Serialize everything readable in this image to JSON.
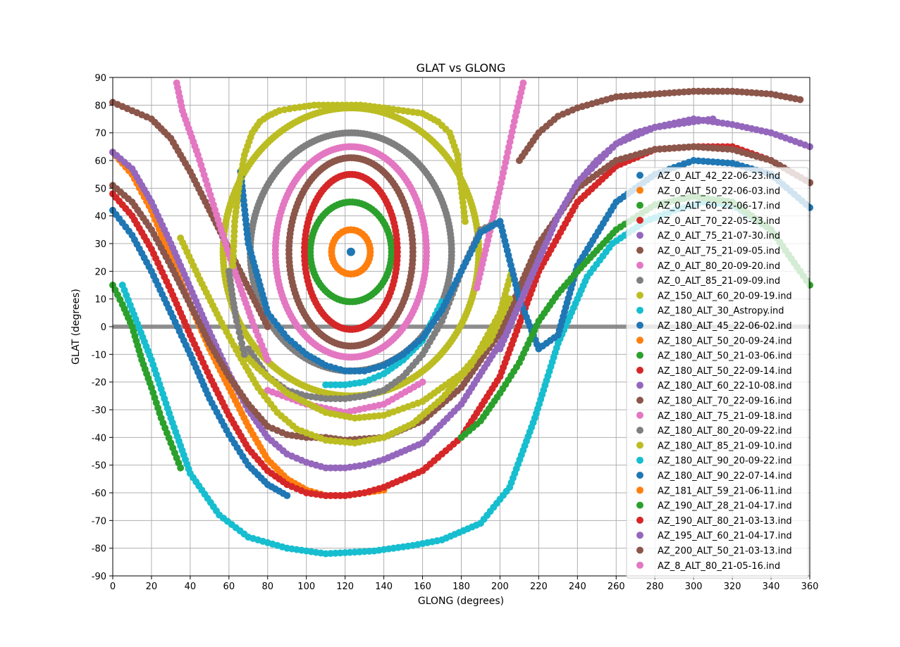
{
  "chart_data": {
    "type": "scatter",
    "title": "GLAT vs GLONG",
    "xlabel": "GLONG (degrees)",
    "ylabel": "GLAT (degrees)",
    "xlim": [
      0,
      360
    ],
    "ylim": [
      -90,
      90
    ],
    "xticks": [
      0,
      20,
      40,
      60,
      80,
      100,
      120,
      140,
      160,
      180,
      200,
      220,
      240,
      260,
      280,
      300,
      320,
      340,
      360
    ],
    "yticks": [
      -90,
      -80,
      -70,
      -60,
      -50,
      -40,
      -30,
      -20,
      -10,
      0,
      10,
      20,
      30,
      40,
      50,
      60,
      70,
      80,
      90
    ],
    "grid": true,
    "legend_position": "right",
    "galactic_plane_line": 0,
    "series": [
      {
        "name": "AZ_0_ALT_42_22-06-23.ind",
        "color": "#1f77b4"
      },
      {
        "name": "AZ_0_ALT_50_22-06-03.ind",
        "color": "#ff7f0e"
      },
      {
        "name": "AZ_0_ALT_60_22-06-17.ind",
        "color": "#2ca02c"
      },
      {
        "name": "AZ_0_ALT_70_22-05-23.ind",
        "color": "#d62728"
      },
      {
        "name": "AZ_0_ALT_75_21-07-30.ind",
        "color": "#9467bd"
      },
      {
        "name": "AZ_0_ALT_75_21-09-05.ind",
        "color": "#8c564b"
      },
      {
        "name": "AZ_0_ALT_80_20-09-20.ind",
        "color": "#e377c2"
      },
      {
        "name": "AZ_0_ALT_85_21-09-09.ind",
        "color": "#7f7f7f"
      },
      {
        "name": "AZ_150_ALT_60_20-09-19.ind",
        "color": "#bcbd22"
      },
      {
        "name": "AZ_180_ALT_30_Astropy.ind",
        "color": "#17becf"
      },
      {
        "name": "AZ_180_ALT_45_22-06-02.ind",
        "color": "#1f77b4"
      },
      {
        "name": "AZ_180_ALT_50_20-09-24.ind",
        "color": "#ff7f0e"
      },
      {
        "name": "AZ_180_ALT_50_21-03-06.ind",
        "color": "#2ca02c"
      },
      {
        "name": "AZ_180_ALT_50_22-09-14.ind",
        "color": "#d62728"
      },
      {
        "name": "AZ_180_ALT_60_22-10-08.ind",
        "color": "#9467bd"
      },
      {
        "name": "AZ_180_ALT_70_22-09-16.ind",
        "color": "#8c564b"
      },
      {
        "name": "AZ_180_ALT_75_21-09-18.ind",
        "color": "#e377c2"
      },
      {
        "name": "AZ_180_ALT_80_20-09-22.ind",
        "color": "#7f7f7f"
      },
      {
        "name": "AZ_180_ALT_85_21-09-10.ind",
        "color": "#bcbd22"
      },
      {
        "name": "AZ_180_ALT_90_20-09-22.ind",
        "color": "#17becf"
      },
      {
        "name": "AZ_180_ALT_90_22-07-14.ind",
        "color": "#1f77b4"
      },
      {
        "name": "AZ_181_ALT_59_21-06-11.ind",
        "color": "#ff7f0e"
      },
      {
        "name": "AZ_190_ALT_28_21-04-17.ind",
        "color": "#2ca02c"
      },
      {
        "name": "AZ_190_ALT_80_21-03-13.ind",
        "color": "#d62728"
      },
      {
        "name": "AZ_195_ALT_60_21-04-17.ind",
        "color": "#9467bd"
      },
      {
        "name": "AZ_200_ALT_50_21-03-13.ind",
        "color": "#8c564b"
      },
      {
        "name": "AZ_8_ALT_80_21-05-16.ind",
        "color": "#e377c2"
      }
    ],
    "loops": [
      {
        "series": 2,
        "cx": 123,
        "cy": 27,
        "rx": 21,
        "ry": 18
      },
      {
        "series": 1,
        "cx": 123,
        "cy": 27,
        "rx": 10,
        "ry": 8
      },
      {
        "series": 3,
        "cx": 123,
        "cy": 27,
        "rx": 24,
        "ry": 28
      },
      {
        "series": 5,
        "cx": 123,
        "cy": 27,
        "rx": 32,
        "ry": 34
      },
      {
        "series": 6,
        "cx": 123,
        "cy": 27,
        "rx": 39,
        "ry": 38
      },
      {
        "series": 7,
        "cx": 123,
        "cy": 27,
        "rx": 52,
        "ry": 43
      },
      {
        "series": 8,
        "cx": 123,
        "cy": 27,
        "rx": 66,
        "ry": 52
      }
    ],
    "center_point": {
      "series": 10,
      "x": 123,
      "y": 27
    },
    "curves": [
      {
        "series": 0,
        "x": [
          0,
          10,
          20,
          30,
          40,
          50,
          60,
          70,
          80,
          90
        ],
        "y": [
          42,
          33,
          20,
          5,
          -10,
          -26,
          -39,
          -50,
          -57,
          -61
        ]
      },
      {
        "series": 1,
        "x": [
          0,
          10,
          20,
          30,
          40,
          50,
          60,
          70,
          80,
          90,
          100,
          110,
          120,
          130,
          140
        ],
        "y": [
          63,
          55,
          42,
          25,
          8,
          -8,
          -22,
          -36,
          -48,
          -55,
          -59,
          -61,
          -61,
          -60,
          -59
        ]
      },
      {
        "series": 3,
        "x": [
          0,
          10,
          20,
          30,
          40,
          50,
          60,
          70,
          80,
          90,
          100,
          110,
          120,
          130,
          140,
          160,
          180,
          200,
          220,
          240,
          260,
          280,
          300,
          320,
          340,
          360
        ],
        "y": [
          48,
          40,
          28,
          13,
          -3,
          -18,
          -32,
          -44,
          -52,
          -57,
          -60,
          -61,
          -61,
          -60,
          -58,
          -52,
          -40,
          -18,
          20,
          45,
          58,
          64,
          65,
          65,
          60,
          52
        ]
      },
      {
        "series": 4,
        "x": [
          0,
          10,
          20,
          30,
          40,
          50,
          60,
          70,
          80,
          90,
          100,
          110,
          120,
          130,
          140,
          160,
          180,
          200,
          220,
          240,
          260,
          280,
          300,
          320,
          340,
          360
        ],
        "y": [
          63,
          57,
          45,
          30,
          14,
          -2,
          -17,
          -30,
          -40,
          -46,
          -49,
          -51,
          -51,
          -50,
          -48,
          -42,
          -28,
          -6,
          28,
          52,
          66,
          72,
          75,
          73,
          70,
          65
        ]
      },
      {
        "series": 5,
        "x": [
          0,
          10,
          20,
          30,
          40,
          50,
          60,
          70,
          80,
          90,
          100,
          110,
          120,
          140,
          160,
          180,
          200,
          220,
          240,
          260,
          280,
          300,
          320,
          340,
          360
        ],
        "y": [
          51,
          45,
          35,
          22,
          8,
          -6,
          -18,
          -28,
          -36,
          -39,
          -40,
          -40,
          -41,
          -40,
          -34,
          -22,
          -2,
          30,
          50,
          60,
          64,
          65,
          64,
          60,
          52
        ]
      },
      {
        "series": 5,
        "x": [
          0,
          10,
          20,
          30,
          40,
          50,
          60,
          70,
          80
        ],
        "y": [
          81,
          78,
          75,
          68,
          56,
          42,
          28,
          14,
          0
        ]
      },
      {
        "series": 6,
        "x": [
          33,
          36,
          40,
          44,
          48,
          52,
          56,
          60,
          64,
          68,
          72,
          76,
          80
        ],
        "y": [
          88,
          78,
          70,
          62,
          53,
          44,
          35,
          26,
          18,
          10,
          2,
          -5,
          -12
        ]
      },
      {
        "series": 6,
        "x": [
          212,
          208,
          204,
          200,
          196,
          192,
          188
        ],
        "y": [
          88,
          76,
          63,
          50,
          38,
          26,
          14
        ]
      },
      {
        "series": 6,
        "x": [
          80,
          100,
          120,
          140,
          160
        ],
        "y": [
          -23,
          -28,
          -31,
          -28,
          -20
        ]
      },
      {
        "series": 7,
        "x": [
          70,
          80,
          90,
          100,
          110,
          120,
          130,
          140,
          150,
          160,
          170,
          180,
          190,
          200
        ],
        "y": [
          -8,
          -18,
          -23,
          -25,
          -26,
          -26,
          -25,
          -23,
          -18,
          -10,
          2,
          20,
          35,
          38
        ]
      },
      {
        "series": 8,
        "x": [
          35,
          45,
          55,
          65,
          75,
          85,
          95,
          110,
          125,
          140,
          155,
          170,
          185,
          200,
          206
        ],
        "y": [
          32,
          17,
          3,
          -10,
          -22,
          -31,
          -37,
          -41,
          -42,
          -40,
          -35,
          -26,
          -14,
          5,
          20
        ]
      },
      {
        "series": 8,
        "x": [
          65,
          75,
          90,
          110,
          125,
          140,
          160,
          180,
          195,
          205
        ],
        "y": [
          -8,
          -15,
          -24,
          -31,
          -33,
          -32,
          -27,
          -17,
          -5,
          10
        ]
      },
      {
        "series": 9,
        "x": [
          5,
          10,
          20,
          30,
          40,
          55,
          70,
          90,
          110,
          135,
          155,
          170,
          190,
          205,
          218,
          230,
          245,
          258,
          275,
          290,
          305,
          320,
          340,
          355
        ],
        "y": [
          15,
          6,
          -12,
          -33,
          -53,
          -68,
          -76,
          -80,
          -82,
          -81,
          -79,
          -77,
          -71,
          -58,
          -33,
          -6,
          18,
          30,
          38,
          42,
          45,
          44,
          35,
          20
        ]
      },
      {
        "series": 9,
        "x": [
          110,
          120,
          130,
          140,
          150,
          160,
          170
        ],
        "y": [
          -21,
          -21,
          -20,
          -17,
          -12,
          -5,
          9
        ]
      },
      {
        "series": 10,
        "x": [
          66,
          70,
          80,
          90,
          100,
          110,
          120,
          130,
          140,
          150,
          160,
          170,
          180,
          190,
          200,
          210,
          220,
          230,
          240,
          260,
          280,
          300,
          320,
          340,
          360
        ],
        "y": [
          56,
          30,
          5,
          -4,
          -10,
          -14,
          -16,
          -16,
          -14,
          -10,
          -4,
          6,
          20,
          34,
          38,
          10,
          -8,
          -3,
          22,
          45,
          55,
          60,
          59,
          55,
          43
        ]
      },
      {
        "series": 12,
        "x": [
          0,
          5,
          10,
          15,
          20,
          25,
          30,
          35
        ],
        "y": [
          15,
          8,
          0,
          -12,
          -22,
          -33,
          -42,
          -51
        ]
      },
      {
        "series": 12,
        "x": [
          180,
          190,
          200,
          210,
          220,
          230,
          240,
          260,
          280,
          300,
          320,
          340,
          355,
          360
        ],
        "y": [
          -40,
          -34,
          -24,
          -13,
          2,
          12,
          20,
          35,
          44,
          47,
          45,
          35,
          20,
          15
        ]
      },
      {
        "series": 14,
        "x": [
          200,
          210,
          220,
          230,
          240,
          250,
          260,
          270,
          280,
          290,
          300,
          310
        ],
        "y": [
          -8,
          8,
          24,
          40,
          52,
          60,
          66,
          70,
          72,
          73,
          74,
          75
        ]
      },
      {
        "series": 15,
        "x": [
          210,
          220,
          230,
          240,
          250,
          260,
          280,
          300,
          320,
          340,
          355
        ],
        "y": [
          60,
          70,
          76,
          79,
          81,
          83,
          84,
          85,
          85,
          84,
          82
        ]
      },
      {
        "series": 7,
        "x": [
          60,
          62,
          64,
          66,
          68
        ],
        "y": [
          20,
          10,
          2,
          -4,
          -10
        ]
      },
      {
        "series": 8,
        "x": [
          62,
          63,
          65,
          68,
          72,
          76,
          80,
          86,
          94,
          104,
          116,
          128,
          140,
          150,
          160,
          168,
          174,
          178,
          180,
          182
        ],
        "y": [
          22,
          38,
          50,
          62,
          70,
          74,
          76,
          78,
          79,
          80,
          80,
          80,
          79,
          78,
          77,
          74,
          70,
          62,
          50,
          38
        ]
      }
    ]
  }
}
